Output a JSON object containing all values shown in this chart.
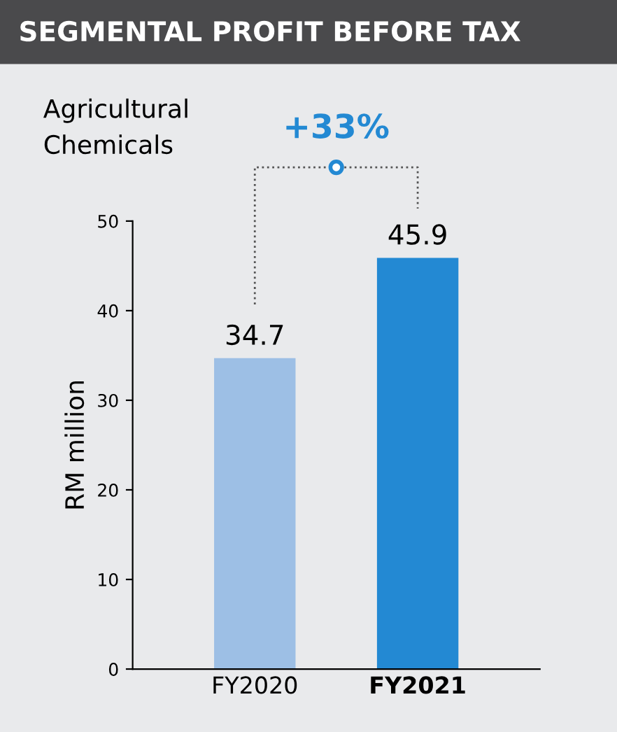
{
  "chart_data": {
    "type": "bar",
    "title": "SEGMENTAL PROFIT BEFORE TAX",
    "subtitle": "Agricultural\nChemicals",
    "ylabel": "RM million",
    "categories": [
      "FY2020",
      "FY2021"
    ],
    "values": [
      34.7,
      45.9
    ],
    "colors": [
      "#9dbfe5",
      "#2389d3"
    ],
    "ylim": [
      0,
      50
    ],
    "yticks": [
      0,
      10,
      20,
      30,
      40,
      50
    ],
    "grid": false,
    "data_labels": true,
    "annotations": [
      "+33%"
    ]
  }
}
